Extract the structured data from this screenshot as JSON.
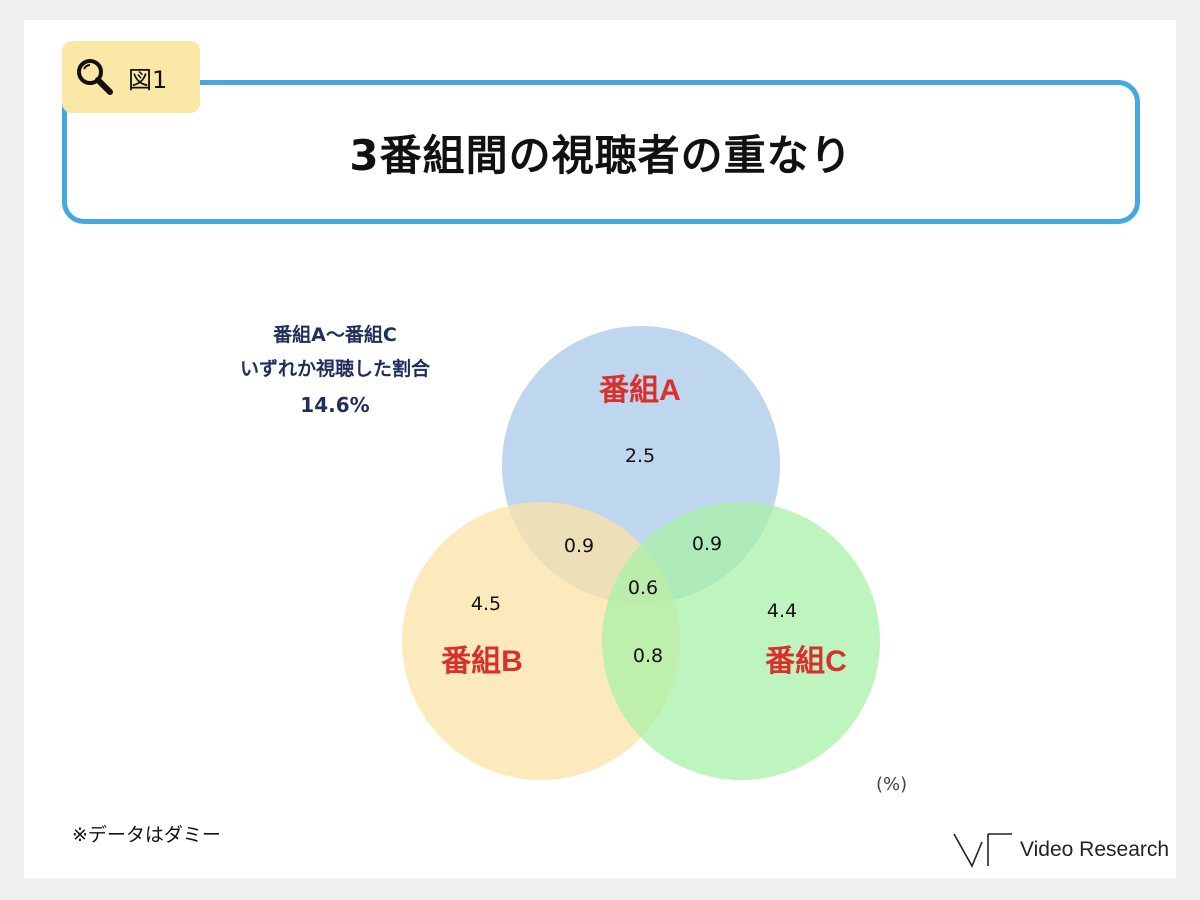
{
  "figure_tag": {
    "label": "図1",
    "icon": "magnifier-icon"
  },
  "title": "3番組間の視聴者の重なり",
  "summary": {
    "line1": "番組A〜番組C",
    "line2": "いずれか視聴した割合",
    "value": "14.6%"
  },
  "venn": {
    "sets": [
      {
        "name": "番組A",
        "color": "#a8c8e8"
      },
      {
        "name": "番組B",
        "color": "#fce3a5"
      },
      {
        "name": "番組C",
        "color": "#a8f0a8"
      }
    ],
    "regions": {
      "A_only": "2.5",
      "B_only": "4.5",
      "C_only": "4.4",
      "AB": "0.9",
      "AC": "0.9",
      "BC": "0.8",
      "ABC": "0.6"
    },
    "label_color": "#d9302c"
  },
  "unit": "(%)",
  "note": "※データはダミー",
  "logo": {
    "text": "Video Research",
    "icon": "vr-logo-icon"
  },
  "colors": {
    "accent": "#45a9de",
    "tag_bg": "#fbe7a6",
    "summary_text": "#1f2f5c"
  }
}
